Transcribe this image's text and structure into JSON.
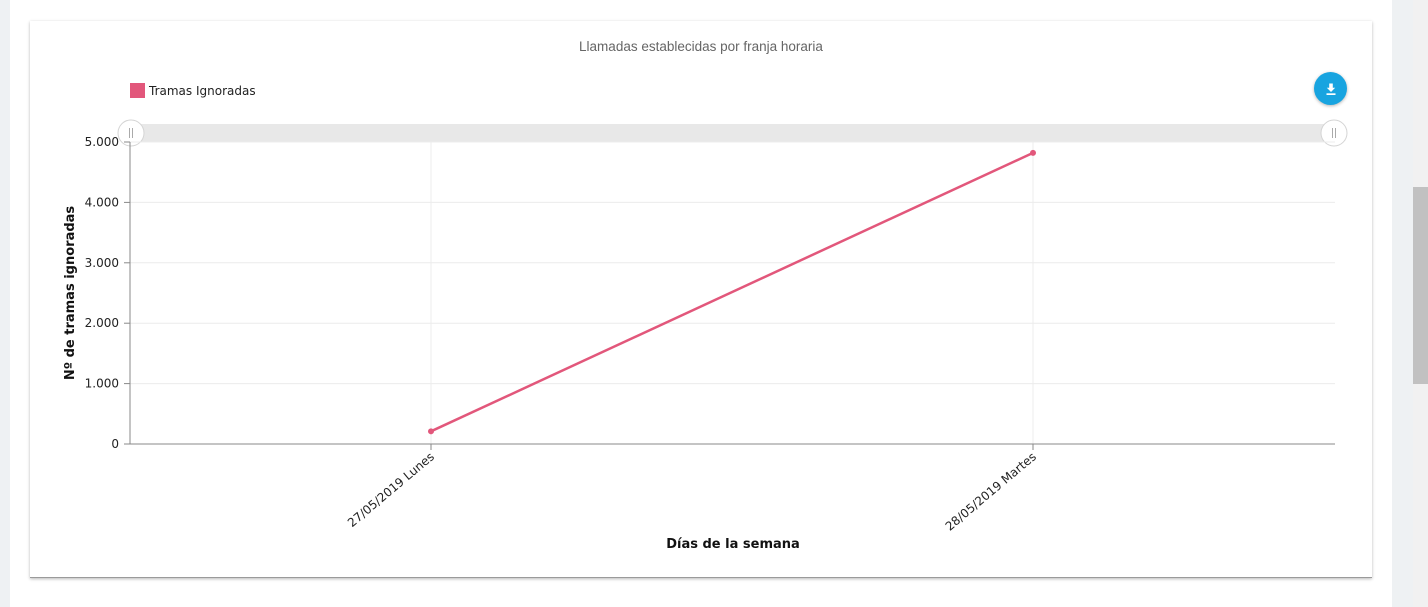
{
  "chart_data": {
    "type": "line",
    "title": "Llamadas establecidas por franja horaria",
    "xlabel": "Días de la semana",
    "ylabel": "Nº de tramas ignoradas",
    "categories": [
      "27/05/2019 Lunes",
      "28/05/2019 Martes"
    ],
    "series": [
      {
        "name": "Tramas Ignoradas",
        "values": [
          210,
          4820
        ],
        "color": "#e2577b"
      }
    ],
    "ylim": [
      0,
      5000
    ],
    "yticks": [
      0,
      1000,
      2000,
      3000,
      4000,
      5000
    ],
    "ytick_labels": [
      "0",
      "1.000",
      "2.000",
      "3.000",
      "4.000",
      "5.000"
    ],
    "grid": true,
    "legend_position": "top-left"
  },
  "toolbar": {
    "download_icon": "download-icon",
    "button_color": "#18a4e0"
  },
  "scrollbar": {
    "icon": "scroll-thumb"
  }
}
